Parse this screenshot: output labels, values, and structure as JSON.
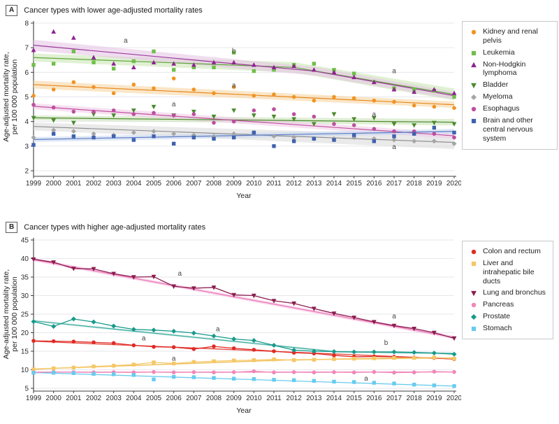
{
  "chart_data": [
    {
      "type": "scatter",
      "panel_label": "A",
      "title": "Cancer types with lower age-adjusted mortality rates",
      "ylabel": [
        "Age-adjusted mortality rate,",
        "per 100 000 population"
      ],
      "xlabel": "Year",
      "ylim": [
        2,
        8
      ],
      "yticks": [
        2,
        3,
        4,
        5,
        6,
        7,
        8
      ],
      "grid": true,
      "legend_position": "right",
      "years": [
        1999,
        2000,
        2001,
        2002,
        2003,
        2004,
        2005,
        2006,
        2007,
        2008,
        2009,
        2010,
        2011,
        2012,
        2013,
        2014,
        2015,
        2016,
        2017,
        2018,
        2019,
        2020
      ],
      "series": [
        {
          "name": "Kidney and renal pelvis",
          "marker": "circle",
          "line": false,
          "color": "#F09422",
          "trend_color": "#E8871B",
          "band_color": "#F7D6A4",
          "band_hw": [
            0.16,
            0.13
          ],
          "values": [
            5.05,
            5.3,
            5.6,
            5.4,
            5.15,
            5.5,
            5.35,
            5.75,
            5.3,
            5.15,
            5.4,
            5.05,
            5.1,
            5.0,
            4.85,
            5.0,
            4.95,
            4.85,
            4.8,
            4.65,
            4.6,
            4.55
          ],
          "trend_pts": [
            [
              1999,
              5.5
            ],
            [
              2020,
              4.68
            ]
          ]
        },
        {
          "name": "Leukemia",
          "marker": "square",
          "line": false,
          "color": "#6FBF4A",
          "trend_color": "#5FA53C",
          "band_color": "#CBE7B6",
          "band_hw": [
            0.16,
            0.24
          ],
          "values": [
            6.3,
            6.35,
            6.85,
            6.4,
            6.15,
            6.45,
            6.85,
            6.1,
            6.2,
            6.2,
            6.8,
            6.05,
            6.1,
            6.3,
            6.35,
            6.1,
            5.95,
            5.6,
            5.35,
            5.3,
            5.25,
            5.0
          ],
          "trend_pts": [
            [
              1999,
              6.6
            ],
            [
              2012,
              6.2
            ],
            [
              2020,
              5.1
            ]
          ]
        },
        {
          "name": "Non-Hodgkin lymphoma",
          "marker": "triangle-up",
          "line": false,
          "color": "#8E2392",
          "trend_color": "#9C3A9C",
          "band_color": "#E6C6E6",
          "band_hw": [
            0.22,
            0.15
          ],
          "values": [
            6.9,
            7.65,
            7.4,
            6.6,
            6.35,
            6.2,
            6.4,
            6.35,
            6.3,
            6.4,
            6.4,
            6.3,
            6.2,
            6.25,
            6.1,
            6.0,
            5.8,
            5.6,
            5.3,
            5.2,
            5.3,
            5.15
          ],
          "trend_pts": [
            [
              1999,
              7.1
            ],
            [
              2013,
              6.05
            ],
            [
              2020,
              5.05
            ]
          ]
        },
        {
          "name": "Bladder",
          "marker": "triangle-down",
          "line": false,
          "color": "#4C8A2E",
          "trend_color": "#4C8A2E",
          "band_color": "#C9E2B8",
          "band_hw": [
            0.1,
            0.13
          ],
          "values": [
            4.15,
            4.05,
            3.95,
            4.3,
            4.25,
            4.45,
            4.6,
            4.25,
            4.4,
            4.2,
            4.45,
            4.25,
            4.2,
            4.1,
            3.9,
            4.3,
            4.1,
            4.15,
            3.9,
            3.85,
            3.95,
            3.9
          ],
          "trend_pts": [
            [
              1999,
              4.15
            ],
            [
              2020,
              3.97
            ]
          ]
        },
        {
          "name": "Myeloma",
          "marker": "diamond",
          "line": false,
          "color": "#A5A5A5",
          "trend_color": "#8F8F8F",
          "band_color": "#DCDCDC",
          "band_hw": [
            0.16,
            0.27
          ],
          "values": [
            3.35,
            3.65,
            3.6,
            3.5,
            3.45,
            3.55,
            3.6,
            3.5,
            3.45,
            3.4,
            3.5,
            3.55,
            3.4,
            3.35,
            3.3,
            3.3,
            3.35,
            3.3,
            3.25,
            3.2,
            3.2,
            3.1
          ],
          "trend_pts": [
            [
              1999,
              3.8
            ],
            [
              2020,
              3.15
            ]
          ]
        },
        {
          "name": "Esophagus",
          "marker": "circle",
          "line": false,
          "color": "#BC4F9F",
          "trend_color": "#C0529F",
          "band_color": "#F0CCE7",
          "band_hw": [
            0.12,
            0.12
          ],
          "values": [
            4.68,
            4.57,
            4.4,
            4.4,
            4.45,
            4.3,
            4.35,
            4.25,
            4.3,
            3.95,
            4.0,
            4.45,
            4.5,
            4.3,
            4.2,
            3.9,
            3.85,
            3.7,
            3.6,
            3.6,
            3.5,
            3.35
          ],
          "trend_pts": [
            [
              1999,
              4.62
            ],
            [
              2020,
              3.42
            ]
          ]
        },
        {
          "name": "Brain and other central nervous system",
          "marker": "square",
          "line": false,
          "color": "#3F62AE",
          "trend_color": "#5B7CC4",
          "band_color": "#C9D7F0",
          "band_hw": [
            0.1,
            0.1
          ],
          "values": [
            3.05,
            3.5,
            3.4,
            3.35,
            3.4,
            3.25,
            3.4,
            3.1,
            3.35,
            3.3,
            3.35,
            3.55,
            3.0,
            3.2,
            3.3,
            3.25,
            3.45,
            3.2,
            3.4,
            3.5,
            3.75,
            3.55
          ],
          "trend_pts": [
            [
              1999,
              3.27
            ],
            [
              2020,
              3.6
            ]
          ]
        }
      ],
      "annotations": [
        {
          "text": "a",
          "x": 2003.6,
          "y": 7.2
        },
        {
          "text": "b",
          "x": 2009,
          "y": 6.78
        },
        {
          "text": "a",
          "x": 2009,
          "y": 5.38
        },
        {
          "text": "a",
          "x": 2006,
          "y": 4.62
        },
        {
          "text": "a",
          "x": 2017,
          "y": 5.97
        },
        {
          "text": "a",
          "x": 2016,
          "y": 4.2
        },
        {
          "text": "a",
          "x": 2017,
          "y": 2.88
        }
      ]
    },
    {
      "type": "line",
      "panel_label": "B",
      "title": "Cancer types with higher age-adjusted mortality rates",
      "ylabel": [
        "Age-adjusted mortality rate,",
        "per 100 000 population"
      ],
      "xlabel": "Year",
      "ylim": [
        5,
        45
      ],
      "yticks": [
        5,
        10,
        15,
        20,
        25,
        30,
        35,
        40,
        45
      ],
      "grid": true,
      "legend_position": "right",
      "years": [
        1999,
        2000,
        2001,
        2002,
        2003,
        2004,
        2005,
        2006,
        2007,
        2008,
        2009,
        2010,
        2011,
        2012,
        2013,
        2014,
        2015,
        2016,
        2017,
        2018,
        2019,
        2020
      ],
      "series": [
        {
          "name": "Colon and rectum",
          "marker": "circle",
          "line": true,
          "color": "#E02A25",
          "trend_color": "#E4453C",
          "band_color": "#F6BDB8",
          "band_hw": [
            0.2,
            0.2
          ],
          "values": [
            17.8,
            17.7,
            17.6,
            17.4,
            17.2,
            16.6,
            16.2,
            16.1,
            15.6,
            16.3,
            15.8,
            15.4,
            15.0,
            14.6,
            14.4,
            13.9,
            13.5,
            13.6,
            13.5,
            13.3,
            13.2,
            12.9
          ],
          "trend_pts": [
            [
              1999,
              17.7
            ],
            [
              2020,
              12.9
            ]
          ]
        },
        {
          "name": "Liver and intrahepatic bile ducts",
          "marker": "square",
          "line": true,
          "color": "#F5C766",
          "trend_color": "#EFBE52",
          "band_color": "#FAE6BC",
          "band_hw": [
            0.2,
            0.2
          ],
          "values": [
            10.1,
            10.4,
            10.6,
            10.9,
            11.1,
            11.4,
            12.0,
            11.7,
            12.1,
            12.3,
            12.5,
            12.6,
            12.8,
            12.6,
            12.7,
            12.9,
            13.0,
            13.1,
            13.2,
            13.2,
            13.3,
            13.0
          ],
          "trend_pts": [
            [
              1999,
              10.2
            ],
            [
              2012,
              12.7
            ],
            [
              2020,
              13.2
            ]
          ]
        },
        {
          "name": "Lung and bronchus",
          "marker": "triangle-down",
          "line": true,
          "color": "#8C1D4F",
          "trend_color": "#E970B6",
          "band_color": "#F6C3DF",
          "band_hw": [
            0.45,
            0.45
          ],
          "values": [
            39.8,
            39.0,
            37.3,
            37.2,
            35.9,
            35.0,
            35.1,
            32.5,
            32.0,
            32.2,
            30.2,
            30.0,
            28.6,
            27.9,
            26.5,
            25.2,
            24.1,
            22.9,
            21.9,
            21.1,
            20.0,
            18.5
          ],
          "trend_pts": [
            [
              1999,
              39.7
            ],
            [
              2020,
              18.7
            ]
          ]
        },
        {
          "name": "Pancreas",
          "marker": "circle",
          "line": true,
          "color": "#F087B8",
          "trend_color": "#EC74AC",
          "band_color": "#FAD2E5",
          "band_hw": [
            0.15,
            0.15
          ],
          "values": [
            9.3,
            9.4,
            9.35,
            9.3,
            9.35,
            9.3,
            9.4,
            9.3,
            9.35,
            9.3,
            9.35,
            9.6,
            9.3,
            9.35,
            9.3,
            9.35,
            9.3,
            9.4,
            9.25,
            9.3,
            9.5,
            9.4
          ],
          "trend_pts": [
            [
              1999,
              9.35
            ],
            [
              2020,
              9.4
            ]
          ]
        },
        {
          "name": "Prostate",
          "marker": "diamond",
          "line": true,
          "color": "#17998A",
          "trend_color": "#3AAC9E",
          "band_color": "#BFE4DE",
          "band_hw": [
            0.3,
            0.3
          ],
          "values": [
            23.0,
            21.7,
            23.7,
            22.9,
            21.8,
            20.9,
            20.7,
            20.4,
            19.9,
            19.1,
            18.3,
            17.9,
            16.6,
            15.3,
            15.0,
            14.9,
            14.8,
            14.8,
            14.8,
            14.7,
            14.5,
            14.2
          ],
          "trend_pts": [
            [
              1999,
              23.2
            ],
            [
              2014,
              14.9
            ],
            [
              2020,
              14.4
            ]
          ]
        },
        {
          "name": "Stomach",
          "marker": "square",
          "line": false,
          "color": "#67CBEF",
          "trend_color": "#67CBEF",
          "band_color": "#CDEFFA",
          "band_hw": [
            0.15,
            0.15
          ],
          "values": [
            9.2,
            9.2,
            9.1,
            8.9,
            8.8,
            8.6,
            7.4,
            8.1,
            8.0,
            7.8,
            7.6,
            7.5,
            7.3,
            7.2,
            7.0,
            6.8,
            6.7,
            6.5,
            6.3,
            6.0,
            5.8,
            5.6
          ],
          "trend_pts": [
            [
              1999,
              9.25
            ],
            [
              2020,
              5.6
            ]
          ]
        }
      ],
      "annotations": [
        {
          "text": "a",
          "x": 2006.3,
          "y": 35.4
        },
        {
          "text": "a",
          "x": 2017,
          "y": 23.9
        },
        {
          "text": "a",
          "x": 2004.5,
          "y": 17.9
        },
        {
          "text": "a",
          "x": 2008.2,
          "y": 20.4
        },
        {
          "text": "a",
          "x": 2006,
          "y": 12.5
        },
        {
          "text": "b",
          "x": 2016.6,
          "y": 16.7
        },
        {
          "text": "a",
          "x": 2015.6,
          "y": 7.05
        }
      ]
    }
  ],
  "style": {
    "grid_color": "#E7E7EE",
    "axis_color": "#3C3C3C",
    "tick_text_color": "#2B2B2B",
    "annotation_color": "#444444"
  }
}
